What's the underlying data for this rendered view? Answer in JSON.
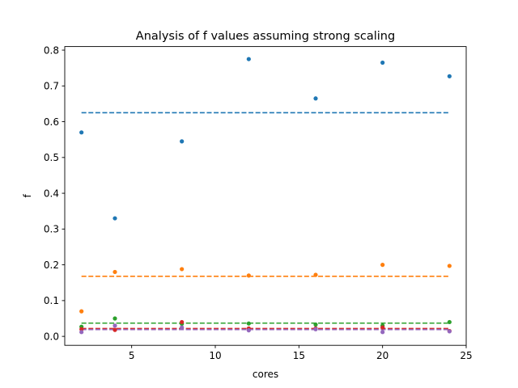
{
  "chart_data": {
    "type": "scatter",
    "title": "Analysis of f values assuming strong scaling",
    "xlabel": "cores",
    "ylabel": "f",
    "xlim": [
      1.0,
      25.0
    ],
    "ylim": [
      -0.025,
      0.81
    ],
    "xticks": [
      5,
      10,
      15,
      20,
      25
    ],
    "xtick_labels": [
      "5",
      "10",
      "15",
      "20",
      "25"
    ],
    "yticks": [
      0.0,
      0.1,
      0.2,
      0.3,
      0.4,
      0.5,
      0.6,
      0.7,
      0.8
    ],
    "ytick_labels": [
      "0.0",
      "0.1",
      "0.2",
      "0.3",
      "0.4",
      "0.5",
      "0.6",
      "0.7",
      "0.8"
    ],
    "grid": false,
    "x": [
      2,
      4,
      8,
      12,
      16,
      20,
      24
    ],
    "series": [
      {
        "color": "#1f77b4",
        "values": [
          0.57,
          0.33,
          0.545,
          0.775,
          0.665,
          0.765,
          0.727
        ],
        "mean": 0.625
      },
      {
        "color": "#ff7f0e",
        "values": [
          0.07,
          0.18,
          0.188,
          0.17,
          0.172,
          0.2,
          0.197
        ],
        "mean": 0.168
      },
      {
        "color": "#2ca02c",
        "values": [
          0.027,
          0.05,
          0.035,
          0.036,
          0.033,
          0.03,
          0.04
        ],
        "mean": 0.037
      },
      {
        "color": "#d62728",
        "values": [
          0.02,
          0.018,
          0.04,
          0.022,
          0.022,
          0.025,
          0.015
        ],
        "mean": 0.022
      },
      {
        "color": "#9467bd",
        "values": [
          0.012,
          0.03,
          0.025,
          0.017,
          0.02,
          0.012,
          0.014
        ],
        "mean": 0.019
      }
    ]
  }
}
